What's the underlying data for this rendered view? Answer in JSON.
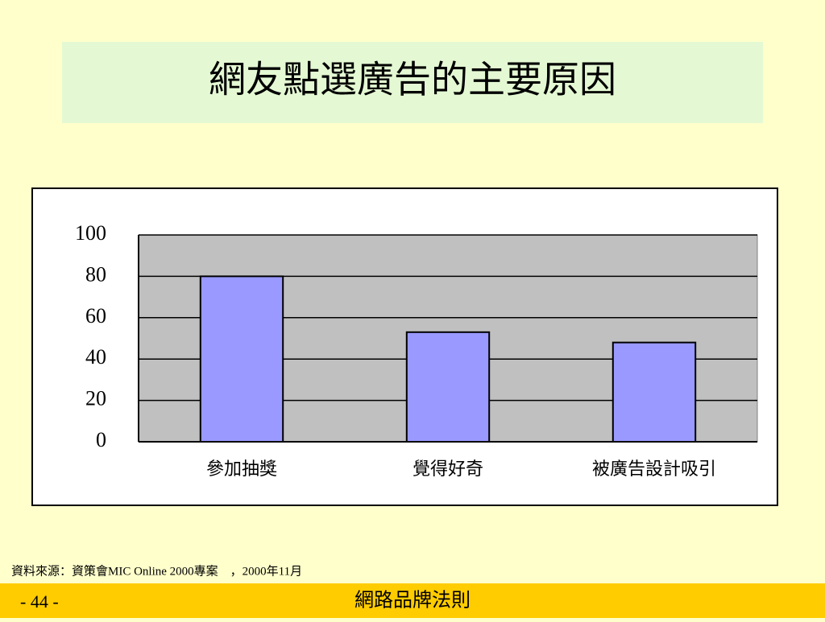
{
  "slide": {
    "title": "網友點選廣告的主要原因"
  },
  "chart_data": {
    "type": "bar",
    "categories": [
      "參加抽獎",
      "覺得好奇",
      "被廣告設計吸引"
    ],
    "values": [
      80,
      53,
      48
    ],
    "color": "#9999ff",
    "ylim": [
      0,
      100
    ],
    "yticks": [
      0,
      20,
      40,
      60,
      80,
      100
    ],
    "grid": true
  },
  "source": "資料來源：資策會MIC Online 2000專案　，2000年11月",
  "footer": {
    "page": "- 44 -",
    "title": "網路品牌法則"
  }
}
